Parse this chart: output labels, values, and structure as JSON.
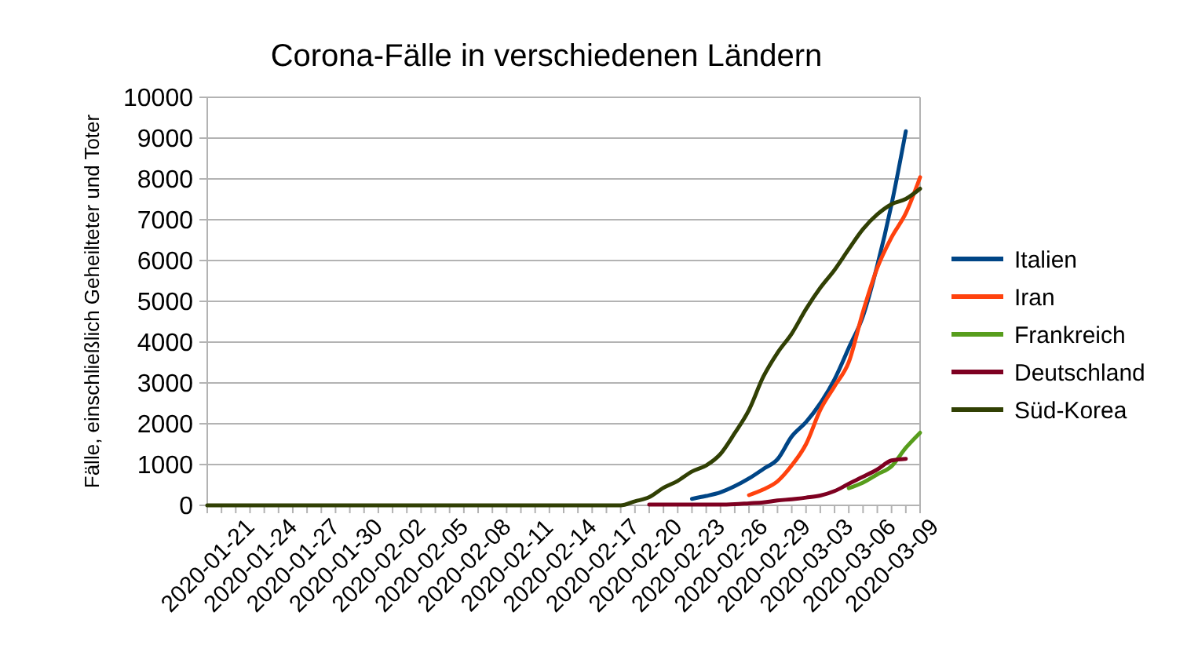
{
  "chart_data": {
    "type": "line",
    "title": "Corona-Fälle in verschiedenen Ländern",
    "ylabel": "Fälle, einschließlich Geheilteter und Toter",
    "categories": [
      "2020-01-21",
      null,
      null,
      "2020-01-24",
      null,
      null,
      "2020-01-27",
      null,
      null,
      "2020-01-30",
      null,
      null,
      "2020-02-02",
      null,
      null,
      "2020-02-05",
      null,
      null,
      "2020-02-08",
      null,
      null,
      "2020-02-11",
      null,
      null,
      "2020-02-14",
      null,
      null,
      "2020-02-17",
      null,
      null,
      "2020-02-20",
      null,
      null,
      "2020-02-23",
      null,
      null,
      "2020-02-26",
      null,
      null,
      "2020-02-29",
      null,
      null,
      "2020-03-03",
      null,
      null,
      "2020-03-06",
      null,
      null,
      "2020-03-09",
      null,
      null
    ],
    "series": [
      {
        "name": "Italien",
        "color": "#004586",
        "values": [
          null,
          null,
          null,
          null,
          null,
          null,
          null,
          null,
          null,
          null,
          null,
          null,
          null,
          null,
          null,
          null,
          null,
          null,
          null,
          null,
          null,
          null,
          null,
          null,
          null,
          null,
          null,
          null,
          null,
          null,
          null,
          null,
          null,
          null,
          160,
          230,
          320,
          470,
          660,
          890,
          1130,
          1690,
          2040,
          2500,
          3090,
          3860,
          4640,
          5880,
          7380,
          9170,
          null
        ]
      },
      {
        "name": "Iran",
        "color": "#ff420e",
        "values": [
          null,
          null,
          null,
          null,
          null,
          null,
          null,
          null,
          null,
          null,
          null,
          null,
          null,
          null,
          null,
          null,
          null,
          null,
          null,
          null,
          null,
          null,
          null,
          null,
          null,
          null,
          null,
          null,
          null,
          null,
          null,
          null,
          null,
          null,
          null,
          null,
          null,
          null,
          250,
          390,
          590,
          980,
          1500,
          2340,
          2920,
          3510,
          4750,
          5820,
          6570,
          7160,
          8040
        ]
      },
      {
        "name": "Frankreich",
        "color": "#579d1c",
        "values": [
          null,
          null,
          null,
          null,
          null,
          null,
          null,
          null,
          null,
          null,
          null,
          null,
          null,
          null,
          null,
          null,
          null,
          null,
          null,
          null,
          null,
          null,
          null,
          null,
          null,
          null,
          null,
          null,
          null,
          null,
          null,
          null,
          null,
          null,
          null,
          null,
          null,
          null,
          null,
          null,
          null,
          null,
          null,
          null,
          null,
          420,
          560,
          760,
          960,
          1410,
          1780
        ]
      },
      {
        "name": "Deutschland",
        "color": "#7e0021",
        "values": [
          null,
          null,
          null,
          null,
          null,
          null,
          null,
          null,
          null,
          null,
          null,
          null,
          null,
          null,
          null,
          null,
          null,
          null,
          null,
          null,
          null,
          null,
          null,
          null,
          null,
          null,
          null,
          null,
          null,
          null,
          null,
          20,
          20,
          20,
          20,
          20,
          20,
          30,
          50,
          70,
          120,
          150,
          190,
          240,
          350,
          530,
          700,
          880,
          1100,
          1140,
          null
        ]
      },
      {
        "name": "Süd-Korea",
        "color": "#314004",
        "values": [
          0,
          0,
          0,
          0,
          0,
          0,
          0,
          0,
          0,
          0,
          0,
          0,
          0,
          0,
          0,
          0,
          0,
          0,
          0,
          0,
          0,
          0,
          0,
          0,
          0,
          0,
          0,
          0,
          0,
          0,
          100,
          200,
          430,
          600,
          830,
          980,
          1260,
          1770,
          2340,
          3150,
          3740,
          4210,
          4810,
          5330,
          5770,
          6280,
          6770,
          7130,
          7380,
          7510,
          7760
        ]
      }
    ],
    "ylim": [
      0,
      10000
    ],
    "yticks": [
      0,
      1000,
      2000,
      3000,
      4000,
      5000,
      6000,
      7000,
      8000,
      9000,
      10000
    ],
    "grid": "y",
    "legend": "right",
    "marker": "none",
    "line_style": "solid"
  }
}
